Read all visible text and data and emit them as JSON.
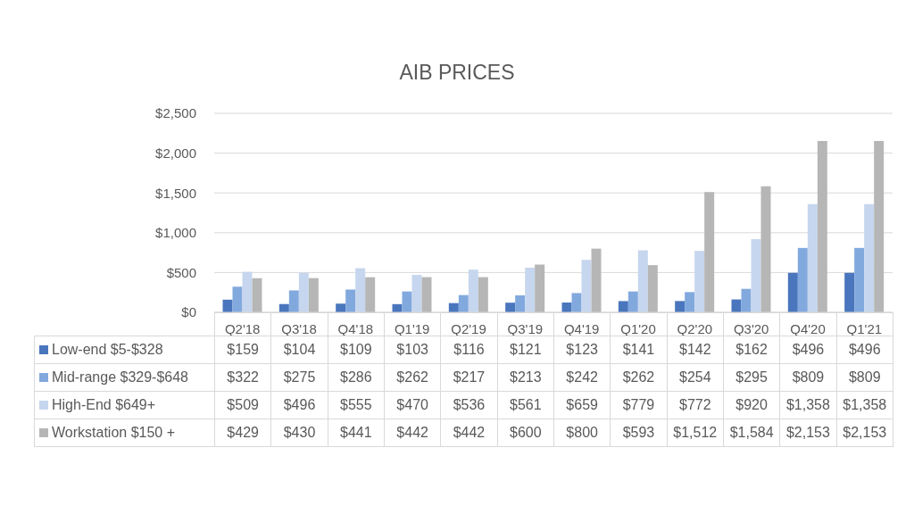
{
  "chart_data": {
    "type": "bar",
    "title": "AIB PRICES",
    "categories": [
      "Q2'18",
      "Q3'18",
      "Q4'18",
      "Q1'19",
      "Q2'19",
      "Q3'19",
      "Q4'19",
      "Q1'20",
      "Q2'20",
      "Q3'20",
      "Q4'20",
      "Q1'21"
    ],
    "series": [
      {
        "name": "Low-end $5-$328",
        "color": "#4a76bd",
        "values": [
          159,
          104,
          109,
          103,
          116,
          121,
          123,
          141,
          142,
          162,
          496,
          496
        ],
        "value_labels": [
          "$159",
          "$104",
          "$109",
          "$103",
          "$116",
          "$121",
          "$123",
          "$141",
          "$142",
          "$162",
          "$496",
          "$496"
        ]
      },
      {
        "name": "Mid-range $329-$648",
        "color": "#82a9de",
        "values": [
          322,
          275,
          286,
          262,
          217,
          213,
          242,
          262,
          254,
          295,
          809,
          809
        ],
        "value_labels": [
          "$322",
          "$275",
          "$286",
          "$262",
          "$217",
          "$213",
          "$242",
          "$262",
          "$254",
          "$295",
          "$809",
          "$809"
        ]
      },
      {
        "name": "High-End $649+",
        "color": "#c6d6ee",
        "values": [
          509,
          496,
          555,
          470,
          536,
          561,
          659,
          779,
          772,
          920,
          1358,
          1358
        ],
        "value_labels": [
          "$509",
          "$496",
          "$555",
          "$470",
          "$536",
          "$561",
          "$659",
          "$779",
          "$772",
          "$920",
          "$1,358",
          "$1,358"
        ]
      },
      {
        "name": "Workstation $150 +",
        "color": "#b6b6b6",
        "values": [
          429,
          430,
          441,
          442,
          442,
          600,
          800,
          593,
          1512,
          1584,
          2153,
          2153
        ],
        "value_labels": [
          "$429",
          "$430",
          "$441",
          "$442",
          "$442",
          "$600",
          "$800",
          "$593",
          "$1,512",
          "$1,584",
          "$2,153",
          "$2,153"
        ]
      }
    ],
    "ylim": [
      0,
      2500
    ],
    "yticks": [
      {
        "value": 0,
        "label": "$0"
      },
      {
        "value": 500,
        "label": "$500"
      },
      {
        "value": 1000,
        "label": "$1,000"
      },
      {
        "value": 1500,
        "label": "$1,500"
      },
      {
        "value": 2000,
        "label": "$2,000"
      },
      {
        "value": 2500,
        "label": "$2,500"
      }
    ],
    "grid": "y",
    "legend": "bottom"
  }
}
